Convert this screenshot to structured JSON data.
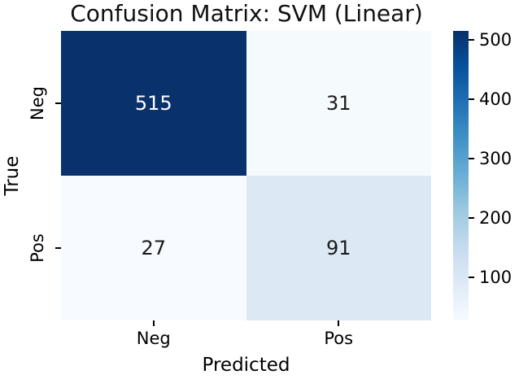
{
  "figure": {
    "background": "#ffffff",
    "text_color": "#111111"
  },
  "chart_data": {
    "type": "heatmap",
    "title": "Confusion Matrix: SVM (Linear)",
    "xlabel": "Predicted",
    "ylabel": "True",
    "x_categories": [
      "Neg",
      "Pos"
    ],
    "y_categories": [
      "Neg",
      "Pos"
    ],
    "values": [
      [
        515,
        31
      ],
      [
        27,
        91
      ]
    ],
    "vmin": 27,
    "vmax": 515,
    "colormap": "Blues",
    "grid": false,
    "legend": "none",
    "colorbar_ticks": [
      100,
      200,
      300,
      400,
      500
    ],
    "cell_colors": [
      [
        "#09316c",
        "#f5fafd"
      ],
      [
        "#f7fbff",
        "#dce9f5"
      ]
    ],
    "cell_text_colors": [
      [
        "#ffffff",
        "#1a1a1a"
      ],
      [
        "#1a1a1a",
        "#1a1a1a"
      ]
    ],
    "colorbar_gradient_top_to_bottom": [
      "#08306b",
      "#08519c",
      "#2171b5",
      "#4292c6",
      "#6baed6",
      "#9ecae1",
      "#c6dbef",
      "#deebf7",
      "#f7fbff"
    ]
  }
}
